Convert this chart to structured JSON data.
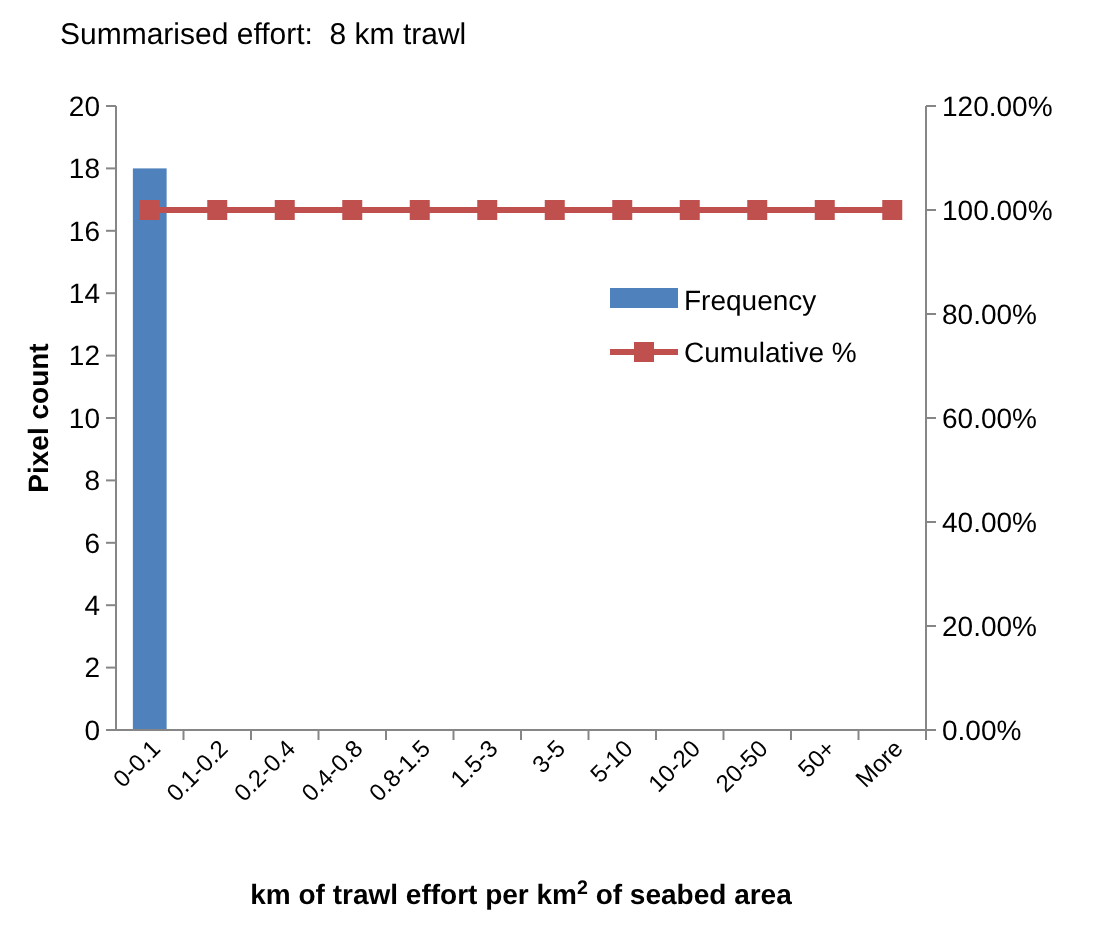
{
  "chart_data": {
    "type": "bar",
    "title": "Summarised effort:  8 km trawl",
    "xlabel": "km of trawl effort per km$^{2}$ of seabed area",
    "ylabel": "Pixel count",
    "categories": [
      "0-0.1",
      "0.1-0.2",
      "0.2-0.4",
      "0.4-0.8",
      "0.8-1.5",
      "1.5-3",
      "3-5",
      "5-10",
      "10-20",
      "20-50",
      "50+",
      "More"
    ],
    "series": [
      {
        "name": "Frequency",
        "color": "#4f81bd",
        "values": [
          18,
          0,
          0,
          0,
          0,
          0,
          0,
          0,
          0,
          0,
          0,
          0
        ]
      },
      {
        "name": "Cumulative %",
        "type": "line",
        "axis": "y2",
        "color": "#c0504d",
        "marker": "square",
        "values": [
          100,
          100,
          100,
          100,
          100,
          100,
          100,
          100,
          100,
          100,
          100,
          100
        ]
      }
    ],
    "ylim": [
      0,
      20
    ],
    "yticks": [
      0,
      2,
      4,
      6,
      8,
      10,
      12,
      14,
      16,
      18,
      20
    ],
    "y2lim": [
      0,
      120
    ],
    "y2ticks": [
      {
        "value": 0,
        "label": "0.00%"
      },
      {
        "value": 20,
        "label": "20.00%"
      },
      {
        "value": 40,
        "label": "40.00%"
      },
      {
        "value": 60,
        "label": "60.00%"
      },
      {
        "value": 80,
        "label": "80.00%"
      },
      {
        "value": 100,
        "label": "100.00%"
      },
      {
        "value": 120,
        "label": "120.00%"
      }
    ],
    "legend": "right",
    "grid": false
  }
}
